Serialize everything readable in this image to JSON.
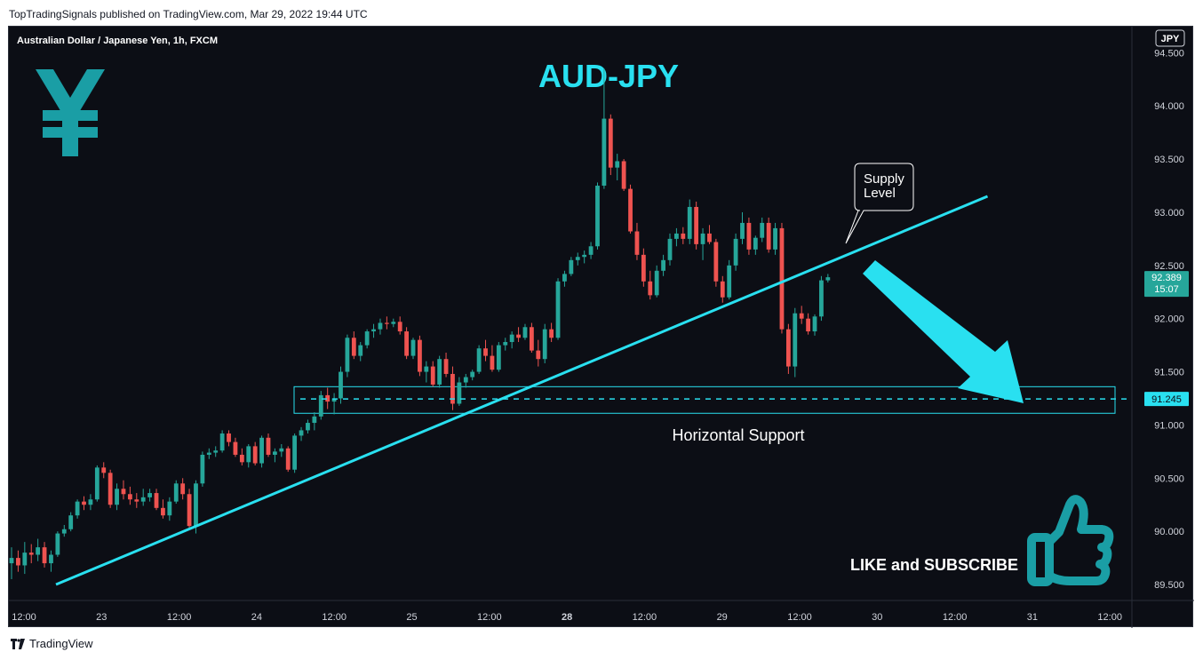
{
  "header": {
    "published": "TopTradingSignals published on TradingView.com, Mar 29, 2022 19:44 UTC"
  },
  "footer": {
    "brand": "TradingView"
  },
  "chart": {
    "symbol_line": "Australian Dollar / Japanese Yen, 1h, FXCM",
    "currency_badge": "JPY",
    "title": "AUD-JPY",
    "supply_label_line1": "Supply",
    "supply_label_line2": "Level",
    "support_label": "Horizontal Support",
    "cta": "LIKE and SUBSCRIBE",
    "last_price": "92.389",
    "countdown": "15:07",
    "support_price": "91.245",
    "icons": [
      "yen-icon",
      "thumbs-up-icon",
      "arrow-down-right-icon"
    ]
  },
  "colors": {
    "background": "#0c0e15",
    "up": "#26a69a",
    "down": "#ef5350",
    "trendline": "#29e0f0",
    "brand_teal": "#1a9ea5",
    "price_tag": "#26a69a"
  },
  "chart_data": {
    "type": "candlestick",
    "title": "AUD-JPY",
    "y_ticks": [
      "94.500",
      "94.000",
      "93.500",
      "93.000",
      "92.500",
      "92.000",
      "91.500",
      "91.000",
      "90.500",
      "90.000",
      "89.500"
    ],
    "x_ticks": [
      "12:00",
      "23",
      "12:00",
      "24",
      "12:00",
      "25",
      "12:00",
      "28",
      "12:00",
      "29",
      "12:00",
      "30",
      "12:00",
      "31",
      "12:00"
    ],
    "ylim": [
      89.35,
      94.72
    ],
    "support_level": 91.245,
    "support_zone": [
      91.11,
      91.36
    ],
    "trendline": [
      [
        0,
        89.5
      ],
      [
        150,
        93.15
      ]
    ],
    "candles": [
      [
        89.7,
        89.85,
        89.55,
        89.75
      ],
      [
        89.75,
        89.82,
        89.62,
        89.68
      ],
      [
        89.68,
        89.9,
        89.6,
        89.8
      ],
      [
        89.8,
        89.88,
        89.7,
        89.78
      ],
      [
        89.78,
        89.93,
        89.72,
        89.85
      ],
      [
        89.85,
        89.9,
        89.66,
        89.7
      ],
      [
        89.7,
        89.82,
        89.62,
        89.78
      ],
      [
        89.78,
        90.0,
        89.76,
        89.98
      ],
      [
        89.98,
        90.06,
        89.95,
        90.02
      ],
      [
        90.02,
        90.18,
        90.0,
        90.15
      ],
      [
        90.15,
        90.3,
        90.12,
        90.28
      ],
      [
        90.28,
        90.33,
        90.2,
        90.25
      ],
      [
        90.25,
        90.35,
        90.2,
        90.3
      ],
      [
        90.3,
        90.62,
        90.28,
        90.6
      ],
      [
        90.6,
        90.65,
        90.5,
        90.55
      ],
      [
        90.55,
        90.58,
        90.22,
        90.25
      ],
      [
        90.25,
        90.45,
        90.2,
        90.4
      ],
      [
        90.4,
        90.48,
        90.3,
        90.35
      ],
      [
        90.35,
        90.42,
        90.25,
        90.3
      ],
      [
        90.3,
        90.36,
        90.22,
        90.28
      ],
      [
        90.28,
        90.4,
        90.24,
        90.32
      ],
      [
        90.32,
        90.4,
        90.28,
        90.36
      ],
      [
        90.36,
        90.4,
        90.2,
        90.22
      ],
      [
        90.22,
        90.3,
        90.12,
        90.15
      ],
      [
        90.15,
        90.32,
        90.1,
        90.28
      ],
      [
        90.28,
        90.48,
        90.26,
        90.45
      ],
      [
        90.45,
        90.5,
        90.3,
        90.35
      ],
      [
        90.35,
        90.4,
        90.03,
        90.05
      ],
      [
        90.05,
        90.48,
        89.98,
        90.45
      ],
      [
        90.45,
        90.75,
        90.42,
        90.72
      ],
      [
        90.72,
        90.78,
        90.68,
        90.74
      ],
      [
        90.74,
        90.8,
        90.7,
        90.76
      ],
      [
        90.76,
        90.95,
        90.74,
        90.92
      ],
      [
        90.92,
        90.95,
        90.8,
        90.84
      ],
      [
        90.84,
        90.88,
        90.7,
        90.72
      ],
      [
        90.72,
        90.78,
        90.62,
        90.65
      ],
      [
        90.65,
        90.82,
        90.6,
        90.8
      ],
      [
        90.8,
        90.84,
        90.62,
        90.64
      ],
      [
        90.64,
        90.9,
        90.6,
        90.88
      ],
      [
        90.88,
        90.92,
        90.7,
        90.72
      ],
      [
        90.72,
        90.78,
        90.65,
        90.75
      ],
      [
        90.75,
        90.82,
        90.7,
        90.78
      ],
      [
        90.78,
        90.8,
        90.56,
        90.58
      ],
      [
        90.58,
        90.92,
        90.55,
        90.9
      ],
      [
        90.9,
        90.98,
        90.85,
        90.95
      ],
      [
        90.95,
        91.05,
        90.92,
        91.02
      ],
      [
        91.02,
        91.12,
        90.95,
        91.08
      ],
      [
        91.08,
        91.32,
        91.05,
        91.28
      ],
      [
        91.28,
        91.35,
        91.15,
        91.22
      ],
      [
        91.22,
        91.3,
        91.1,
        91.25
      ],
      [
        91.25,
        91.55,
        91.2,
        91.5
      ],
      [
        91.5,
        91.85,
        91.45,
        91.82
      ],
      [
        91.82,
        91.88,
        91.62,
        91.65
      ],
      [
        91.65,
        91.78,
        91.6,
        91.75
      ],
      [
        91.75,
        91.9,
        91.72,
        91.88
      ],
      [
        91.88,
        91.95,
        91.82,
        91.9
      ],
      [
        91.9,
        92.0,
        91.85,
        91.96
      ],
      [
        91.96,
        92.02,
        91.9,
        91.95
      ],
      [
        91.95,
        92.0,
        91.92,
        91.97
      ],
      [
        91.97,
        92.02,
        91.85,
        91.88
      ],
      [
        91.88,
        91.92,
        91.62,
        91.65
      ],
      [
        91.65,
        91.82,
        91.62,
        91.8
      ],
      [
        91.8,
        91.84,
        91.46,
        91.5
      ],
      [
        91.5,
        91.6,
        91.4,
        91.55
      ],
      [
        91.55,
        91.6,
        91.36,
        91.38
      ],
      [
        91.38,
        91.65,
        91.35,
        91.62
      ],
      [
        91.62,
        91.68,
        91.45,
        91.48
      ],
      [
        91.48,
        91.55,
        91.14,
        91.2
      ],
      [
        91.2,
        91.45,
        91.18,
        91.4
      ],
      [
        91.4,
        91.48,
        91.35,
        91.45
      ],
      [
        91.45,
        91.52,
        91.42,
        91.5
      ],
      [
        91.5,
        91.75,
        91.48,
        91.72
      ],
      [
        91.72,
        91.8,
        91.6,
        91.65
      ],
      [
        91.65,
        91.75,
        91.5,
        91.52
      ],
      [
        91.52,
        91.78,
        91.5,
        91.75
      ],
      [
        91.75,
        91.82,
        91.7,
        91.78
      ],
      [
        91.78,
        91.88,
        91.72,
        91.85
      ],
      [
        91.85,
        91.92,
        91.78,
        91.82
      ],
      [
        91.82,
        91.95,
        91.8,
        91.92
      ],
      [
        91.92,
        91.96,
        91.68,
        91.7
      ],
      [
        91.7,
        91.8,
        91.55,
        91.62
      ],
      [
        91.62,
        91.95,
        91.58,
        91.9
      ],
      [
        91.9,
        91.96,
        91.78,
        91.82
      ],
      [
        91.82,
        92.38,
        91.8,
        92.35
      ],
      [
        92.35,
        92.45,
        92.3,
        92.42
      ],
      [
        92.42,
        92.58,
        92.4,
        92.55
      ],
      [
        92.55,
        92.62,
        92.5,
        92.58
      ],
      [
        92.58,
        92.64,
        92.52,
        92.6
      ],
      [
        92.6,
        92.72,
        92.56,
        92.68
      ],
      [
        92.68,
        93.28,
        92.65,
        93.25
      ],
      [
        93.25,
        94.35,
        93.22,
        93.88
      ],
      [
        93.88,
        93.92,
        93.35,
        93.42
      ],
      [
        93.42,
        93.55,
        93.3,
        93.48
      ],
      [
        93.48,
        93.5,
        93.2,
        93.22
      ],
      [
        93.22,
        93.26,
        92.8,
        92.82
      ],
      [
        92.82,
        92.9,
        92.55,
        92.6
      ],
      [
        92.6,
        92.66,
        92.3,
        92.35
      ],
      [
        92.35,
        92.45,
        92.18,
        92.22
      ],
      [
        92.22,
        92.5,
        92.2,
        92.45
      ],
      [
        92.45,
        92.6,
        92.4,
        92.55
      ],
      [
        92.55,
        92.8,
        92.5,
        92.75
      ],
      [
        92.75,
        92.85,
        92.68,
        92.8
      ],
      [
        92.8,
        92.86,
        92.7,
        92.75
      ],
      [
        92.75,
        93.12,
        92.7,
        93.05
      ],
      [
        93.05,
        93.1,
        92.65,
        92.7
      ],
      [
        92.7,
        92.85,
        92.55,
        92.8
      ],
      [
        92.8,
        92.88,
        92.7,
        92.72
      ],
      [
        92.72,
        92.75,
        92.3,
        92.35
      ],
      [
        92.35,
        92.4,
        92.15,
        92.2
      ],
      [
        92.2,
        92.55,
        92.18,
        92.5
      ],
      [
        92.5,
        92.8,
        92.45,
        92.75
      ],
      [
        92.75,
        93.0,
        92.7,
        92.9
      ],
      [
        92.9,
        92.95,
        92.6,
        92.65
      ],
      [
        92.65,
        92.78,
        92.6,
        92.76
      ],
      [
        92.76,
        92.95,
        92.72,
        92.9
      ],
      [
        92.9,
        92.95,
        92.62,
        92.65
      ],
      [
        92.65,
        92.9,
        92.6,
        92.85
      ],
      [
        92.85,
        92.9,
        91.86,
        91.9
      ],
      [
        91.9,
        91.95,
        91.48,
        91.55
      ],
      [
        91.55,
        92.1,
        91.45,
        92.05
      ],
      [
        92.05,
        92.12,
        91.95,
        92.0
      ],
      [
        92.0,
        92.05,
        91.85,
        91.88
      ],
      [
        91.88,
        92.04,
        91.84,
        92.02
      ],
      [
        92.02,
        92.4,
        91.98,
        92.36
      ],
      [
        92.36,
        92.42,
        92.34,
        92.389
      ]
    ]
  }
}
